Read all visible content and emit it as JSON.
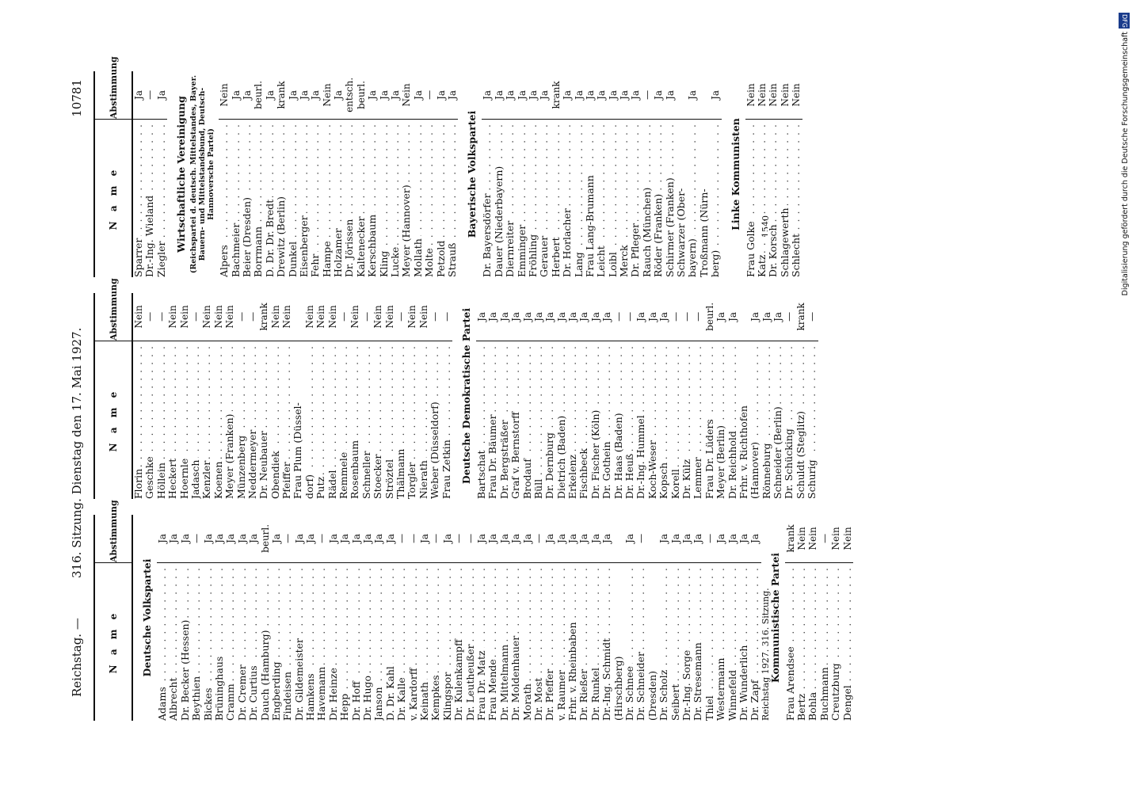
{
  "running_head": {
    "left": "Reichstag. —",
    "center": "316. Sitzung. Dienstag den 17. Mai 1927.",
    "page_number": "10781"
  },
  "column_header": {
    "name": "N a m e",
    "vote": "Abstimmung"
  },
  "footer": "Reichstag 1927. 316. Sitzung.",
  "signature": "1540",
  "watermark": {
    "text": "Digitalisierung gefördert durch die Deutsche Forschungsgemeinschaft",
    "logo": "DFG"
  },
  "columns": [
    {
      "blocks": [
        {
          "party": "Deutsche Volkspartei",
          "rows": [
            {
              "n": "Adams",
              "v": "Ja"
            },
            {
              "n": "Albrecht",
              "v": "Ja"
            },
            {
              "n": "Dr. Becker (Hessen)",
              "v": "Ja"
            },
            {
              "n": "Beythien",
              "v": "—"
            },
            {
              "n": "Bickes",
              "v": "Ja"
            },
            {
              "n": "Brüninghaus",
              "v": "Ja"
            },
            {
              "n": "Cramm",
              "v": "Ja"
            },
            {
              "n": "Dr. Cremer",
              "v": "Ja"
            },
            {
              "n": "Dr. Curtius",
              "v": "Ja"
            },
            {
              "n": "Dauch (Hamburg)",
              "v": "beurl."
            },
            {
              "n": "Engberding",
              "v": "Ja"
            },
            {
              "n": "Findeisen",
              "v": "—"
            },
            {
              "n": "Dr. Gildemeister",
              "v": "Ja"
            },
            {
              "n": "Hamkens",
              "v": "Ja"
            },
            {
              "n": "Havemann",
              "v": "—"
            },
            {
              "n": "Dr. Heinze",
              "v": "Ja"
            },
            {
              "n": "Hepp",
              "v": "Ja"
            },
            {
              "n": "Dr. Hoff",
              "v": "Ja"
            },
            {
              "n": "Dr. Hugo",
              "v": "Ja"
            },
            {
              "n": "Janson",
              "v": "Ja"
            },
            {
              "n": "D. Dr. Kahl",
              "v": "Ja"
            },
            {
              "n": "Dr. Kalle",
              "v": "—"
            },
            {
              "n": "v. Kardorff",
              "v": "—"
            },
            {
              "n": "Keinath",
              "v": "Ja"
            },
            {
              "n": "Kempkes",
              "v": "—"
            },
            {
              "n": "Klingspor",
              "v": "Ja"
            },
            {
              "n": "Dr. Kulenkampff",
              "v": "—"
            },
            {
              "n": "Dr. Leutheußer",
              "v": "—"
            },
            {
              "n": "Frau Dr. Matz",
              "v": "Ja"
            },
            {
              "n": "Frau Mende",
              "v": "Ja"
            },
            {
              "n": "Dr. Mittelmann",
              "v": "Ja"
            },
            {
              "n": "Dr. Moldenhauer",
              "v": "Ja"
            },
            {
              "n": "Morath",
              "v": "Ja"
            },
            {
              "n": "Dr. Most",
              "v": "—"
            },
            {
              "n": "Dr. Pfeffer",
              "v": "Ja"
            },
            {
              "n": "v. Raumer",
              "v": "Ja"
            },
            {
              "n": "Frhr. v. Rheinbaben",
              "v": "Ja"
            },
            {
              "n": "Dr. Rießer",
              "v": "Ja"
            },
            {
              "n": "Dr. Runkel",
              "v": "Ja"
            },
            {
              "n": "Dr.-Ing. Schmidt",
              "v": "Ja"
            },
            {
              "n": "(Hirschberg)",
              "v": ""
            },
            {
              "n": "Dr. Schnee",
              "v": "Ja"
            },
            {
              "n": "Dr. Schneider",
              "v": "—"
            },
            {
              "n": "(Dresden)",
              "v": ""
            },
            {
              "n": "Dr. Scholz",
              "v": "Ja"
            },
            {
              "n": "Seibert",
              "v": "Ja"
            },
            {
              "n": "Dr.-Ing. Sorge",
              "v": "Ja"
            },
            {
              "n": "Dr. Stresemann",
              "v": "Ja"
            },
            {
              "n": "Thiel",
              "v": "—"
            },
            {
              "n": "Westermann",
              "v": "Ja"
            },
            {
              "n": "Winnefeld",
              "v": "Ja"
            },
            {
              "n": "Dr. Wunderlich",
              "v": "Ja"
            },
            {
              "n": "Dr. Zapf",
              "v": "Ja"
            }
          ]
        },
        {
          "party": "Kommunistische Partei",
          "rows": [
            {
              "n": "Frau Arendsee",
              "v": "krank"
            },
            {
              "n": "Bertz",
              "v": "Nein"
            },
            {
              "n": "Bohla",
              "v": "Nein"
            },
            {
              "n": "Buchmann",
              "v": "—"
            },
            {
              "n": "Creutzburg",
              "v": "Nein"
            },
            {
              "n": "Dengel",
              "v": "Nein"
            }
          ]
        }
      ]
    },
    {
      "blocks": [
        {
          "party": "",
          "rows": [
            {
              "n": "Florin",
              "v": "Nein"
            },
            {
              "n": "Geschke",
              "v": "—"
            },
            {
              "n": "Höllein",
              "v": "—"
            },
            {
              "n": "Heckert",
              "v": "Nein"
            },
            {
              "n": "Hoernle",
              "v": "Nein"
            },
            {
              "n": "Jadasch",
              "v": "—"
            },
            {
              "n": "Kenzler",
              "v": "Nein"
            },
            {
              "n": "Koenen",
              "v": "Nein"
            },
            {
              "n": "Meyer (Franken)",
              "v": "Nein"
            },
            {
              "n": "Münzenberg",
              "v": "—"
            },
            {
              "n": "Neddermeyer",
              "v": "—"
            },
            {
              "n": "Dr. Neubauer",
              "v": "krank"
            },
            {
              "n": "Obendiek",
              "v": "Nein"
            },
            {
              "n": "Pfeiffer",
              "v": "Nein"
            },
            {
              "n": "Frau Plum (Düssel-",
              "v": ""
            },
            {
              "n": "dorf)",
              "v": "Nein"
            },
            {
              "n": "Putz",
              "v": "Nein"
            },
            {
              "n": "Rädel",
              "v": "Nein"
            },
            {
              "n": "Remmele",
              "v": "—"
            },
            {
              "n": "Rosenbaum",
              "v": "Nein"
            },
            {
              "n": "Schneller",
              "v": "—"
            },
            {
              "n": "Stoecker",
              "v": "Nein"
            },
            {
              "n": "Ströztel",
              "v": "Nein"
            },
            {
              "n": "Thälmann",
              "v": "—"
            },
            {
              "n": "Torgler",
              "v": "Nein"
            },
            {
              "n": "Nierath",
              "v": "Nein"
            },
            {
              "n": "Weber (Düsseldorf)",
              "v": "—"
            },
            {
              "n": "Frau Zetkin",
              "v": "—"
            }
          ]
        },
        {
          "party": "Deutsche Demokratische Partei",
          "rows": [
            {
              "n": "Bartschat",
              "v": "Ja"
            },
            {
              "n": "Frau Dr. Bäumer",
              "v": "Ja"
            },
            {
              "n": "Dr. Bergsträßer",
              "v": "Ja"
            },
            {
              "n": "Graf v. Bernstorff",
              "v": "Ja"
            },
            {
              "n": "Brodauf",
              "v": "Ja"
            },
            {
              "n": "Büll",
              "v": "Ja"
            },
            {
              "n": "Dr. Dernburg",
              "v": "Ja"
            },
            {
              "n": "Dietrich (Baden)",
              "v": "Ja"
            },
            {
              "n": "Erkelenz",
              "v": "Ja"
            },
            {
              "n": "Fischbeck",
              "v": "Ja"
            },
            {
              "n": "Dr. Fischer (Köln)",
              "v": "Ja"
            },
            {
              "n": "Dr. Gothein",
              "v": "Ja"
            },
            {
              "n": "Dr. Haas (Baden)",
              "v": "—"
            },
            {
              "n": "Dr. Heuß",
              "v": "—"
            },
            {
              "n": "Dr.-Ing. Hummel",
              "v": "Ja"
            },
            {
              "n": "Koch-Weser",
              "v": "Ja"
            },
            {
              "n": "Kopsch",
              "v": "Ja"
            },
            {
              "n": "Korell",
              "v": "—"
            },
            {
              "n": "Dr. Külz",
              "v": "—"
            },
            {
              "n": "Lemmer",
              "v": "—"
            },
            {
              "n": "Frau Dr. Lüders",
              "v": "beurl."
            },
            {
              "n": "Meyer (Berlin)",
              "v": "Ja"
            },
            {
              "n": "Dr. Reichhold",
              "v": "Ja"
            },
            {
              "n": "Frhr. v. Richthofen",
              "v": ""
            },
            {
              "n": "(Hannover)",
              "v": "Ja"
            },
            {
              "n": "Rönneburg",
              "v": "Ja"
            },
            {
              "n": "Schneider (Berlin)",
              "v": "Ja"
            },
            {
              "n": "Dr. Schücking",
              "v": "—"
            },
            {
              "n": "Schuldt (Steglitz)",
              "v": "krank"
            },
            {
              "n": "Schurig",
              "v": "—"
            }
          ]
        }
      ]
    },
    {
      "blocks": [
        {
          "party": "",
          "rows": [
            {
              "n": "Sparrer",
              "v": "Ja"
            },
            {
              "n": "Dr.-Ing. Wieland",
              "v": "—"
            },
            {
              "n": "Ziegler",
              "v": "Ja"
            }
          ]
        },
        {
          "party": "Wirtschaftliche Vereinigung",
          "sub": "(Reichspartei d. deutsch. Mittelstandes, Bayer. Bauern- und Mittelstandsbund, Deutsch-Hannoversche Partei)",
          "rows": [
            {
              "n": "Alpers",
              "v": "Nein"
            },
            {
              "n": "Bachmeier",
              "v": "Ja"
            },
            {
              "n": "Beier (Dresden)",
              "v": "Ja"
            },
            {
              "n": "Borrmann",
              "v": "beurl."
            },
            {
              "n": "D. Dr. Dr. Bredt",
              "v": "Ja"
            },
            {
              "n": "Drewitz (Berlin)",
              "v": "krank"
            },
            {
              "n": "Dunkel",
              "v": "Ja"
            },
            {
              "n": "Eisenberger",
              "v": "Ja"
            },
            {
              "n": "Fehr",
              "v": "Ja"
            },
            {
              "n": "Hampe",
              "v": "Nein"
            },
            {
              "n": "Holzamer",
              "v": "Ja"
            },
            {
              "n": "Dr. Jörissen",
              "v": "entsch."
            },
            {
              "n": "Kaltenecker",
              "v": "beurl."
            },
            {
              "n": "Kerschbaum",
              "v": "Ja"
            },
            {
              "n": "Kling",
              "v": "Ja"
            },
            {
              "n": "Lucke",
              "v": "Ja"
            },
            {
              "n": "Meyer (Hannover)",
              "v": "Nein"
            },
            {
              "n": "Mollath",
              "v": "Ja"
            },
            {
              "n": "Molte",
              "v": "—"
            },
            {
              "n": "Petzold",
              "v": "Ja"
            },
            {
              "n": "Strauß",
              "v": "Ja"
            }
          ]
        },
        {
          "party": "Bayerische Volkspartei",
          "rows": [
            {
              "n": "Dr. Bayersdörfer",
              "v": "Ja"
            },
            {
              "n": "Dauer (Niederbayern)",
              "v": "Ja"
            },
            {
              "n": "Diernreiter",
              "v": "Ja"
            },
            {
              "n": "Emminger",
              "v": "Ja"
            },
            {
              "n": "Fröhling",
              "v": "Ja"
            },
            {
              "n": "Gerauer",
              "v": "Ja"
            },
            {
              "n": "Herbert",
              "v": "krank"
            },
            {
              "n": "Dr. Horlacher",
              "v": "Ja"
            },
            {
              "n": "Lang",
              "v": "Ja"
            },
            {
              "n": "Frau Lang-Brumann",
              "v": "Ja"
            },
            {
              "n": "Leicht",
              "v": "Ja"
            },
            {
              "n": "Loibl",
              "v": "Ja"
            },
            {
              "n": "Merck",
              "v": "Ja"
            },
            {
              "n": "Dr. Pfleger",
              "v": "Ja"
            },
            {
              "n": "Rauch (München)",
              "v": "—"
            },
            {
              "n": "Röder (Franken)",
              "v": "Ja"
            },
            {
              "n": "Schirmer (Franken)",
              "v": "Ja"
            },
            {
              "n": "Schwarzer (Ober-",
              "v": ""
            },
            {
              "n": "bayern)",
              "v": "Ja"
            },
            {
              "n": "Troßmann (Nürn-",
              "v": ""
            },
            {
              "n": "berg)",
              "v": "Ja"
            }
          ]
        },
        {
          "party": "Linke Kommunisten",
          "rows": [
            {
              "n": "Frau Golke",
              "v": "Nein"
            },
            {
              "n": "Katz",
              "v": "Nein"
            },
            {
              "n": "Dr. Korsch",
              "v": "Nein"
            },
            {
              "n": "Schlagewerth",
              "v": "Nein"
            },
            {
              "n": "Schlecht",
              "v": "Nein"
            }
          ]
        }
      ]
    }
  ]
}
